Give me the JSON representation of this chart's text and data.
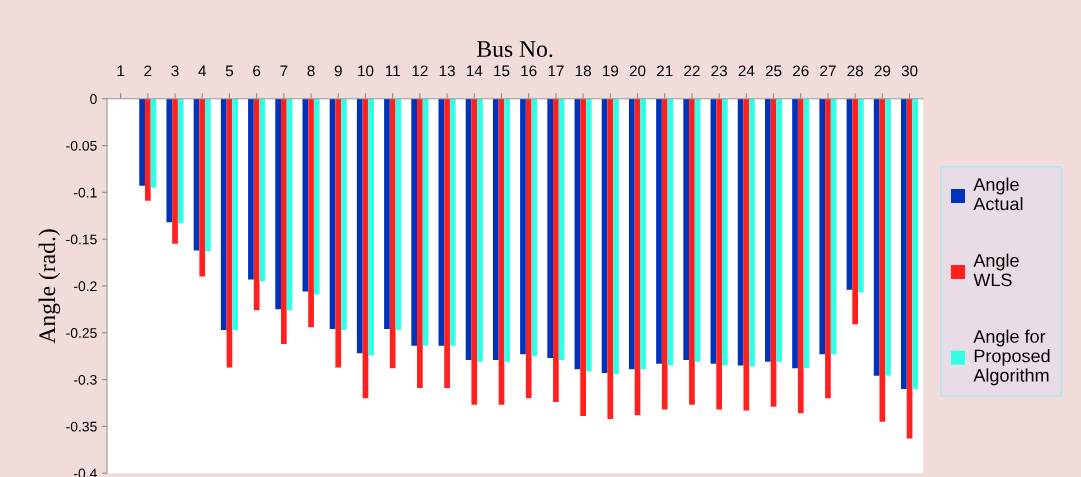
{
  "chart_data": {
    "type": "bar",
    "xlabel": "Bus No.",
    "ylabel": "Angle (rad.)",
    "categories": [
      "1",
      "2",
      "3",
      "4",
      "5",
      "6",
      "7",
      "8",
      "9",
      "10",
      "11",
      "12",
      "13",
      "14",
      "15",
      "16",
      "17",
      "18",
      "19",
      "20",
      "21",
      "22",
      "23",
      "24",
      "25",
      "26",
      "27",
      "28",
      "29",
      "30"
    ],
    "series": [
      {
        "name": "Angle\nActual",
        "color": "#0033bb",
        "values": [
          0,
          -0.093,
          -0.132,
          -0.162,
          -0.247,
          -0.193,
          -0.225,
          -0.206,
          -0.246,
          -0.272,
          -0.246,
          -0.264,
          -0.264,
          -0.279,
          -0.279,
          -0.273,
          -0.277,
          -0.289,
          -0.293,
          -0.289,
          -0.283,
          -0.279,
          -0.283,
          -0.285,
          -0.281,
          -0.288,
          -0.273,
          -0.204,
          -0.296,
          -0.31
        ]
      },
      {
        "name": "Angle\nWLS",
        "color": "#ff2020",
        "values": [
          0,
          -0.109,
          -0.155,
          -0.19,
          -0.287,
          -0.226,
          -0.262,
          -0.244,
          -0.287,
          -0.32,
          -0.288,
          -0.309,
          -0.309,
          -0.327,
          -0.327,
          -0.32,
          -0.324,
          -0.339,
          -0.342,
          -0.338,
          -0.332,
          -0.327,
          -0.332,
          -0.333,
          -0.329,
          -0.336,
          -0.32,
          -0.241,
          -0.345,
          -0.363
        ]
      },
      {
        "name": "Angle for\nProposed\nAlgorithm",
        "color": "#33ffe6",
        "values": [
          0,
          -0.095,
          -0.133,
          -0.163,
          -0.247,
          -0.195,
          -0.226,
          -0.209,
          -0.247,
          -0.274,
          -0.247,
          -0.264,
          -0.264,
          -0.281,
          -0.281,
          -0.275,
          -0.279,
          -0.291,
          -0.294,
          -0.289,
          -0.285,
          -0.281,
          -0.285,
          -0.286,
          -0.281,
          -0.288,
          -0.273,
          -0.207,
          -0.296,
          -0.31
        ]
      }
    ],
    "ylim": [
      -0.4,
      0
    ],
    "yticks": [
      0,
      -0.05,
      -0.1,
      -0.15,
      -0.2,
      -0.25,
      -0.3,
      -0.35,
      -0.4
    ],
    "legend": "right"
  }
}
